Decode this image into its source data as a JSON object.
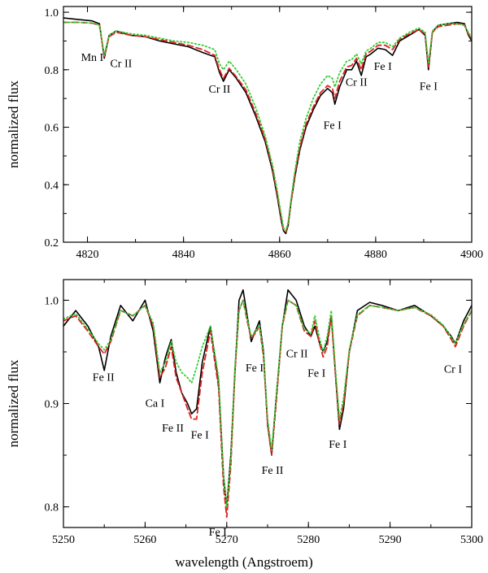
{
  "figure": {
    "xlabel": "wavelength (Angstroem)"
  },
  "chart_data": [
    {
      "type": "line",
      "ylabel": "normalized flux",
      "xlim": [
        4815,
        4900
      ],
      "ylim": [
        0.2,
        1.02
      ],
      "xticks": [
        4820,
        4840,
        4860,
        4880,
        4900
      ],
      "yticks": [
        0.2,
        0.4,
        0.6,
        0.8,
        1.0
      ],
      "xtick_labels": [
        "4820",
        "4840",
        "4860",
        "4880",
        "4900"
      ],
      "ytick_labels": [
        "0.2",
        "0.4",
        "0.6",
        "0.8",
        "1.0"
      ],
      "series": [
        {
          "color": "#000000",
          "style": "solid",
          "x": [
            4815,
            4818,
            4821,
            4822.5,
            4823.5,
            4824.5,
            4826,
            4829,
            4832,
            4835,
            4838,
            4841,
            4844,
            4846.5,
            4847.5,
            4848.3,
            4849.5,
            4851,
            4853,
            4855,
            4857,
            4858.5,
            4859.5,
            4860.3,
            4860.8,
            4861.3,
            4861.8,
            4862.4,
            4863.2,
            4864.2,
            4865.5,
            4867,
            4868.5,
            4870,
            4871,
            4871.5,
            4872.5,
            4874,
            4875,
            4876,
            4877,
            4878,
            4879,
            4880.5,
            4882,
            4883.5,
            4885,
            4887,
            4889,
            4890.3,
            4891,
            4891.8,
            4893,
            4895,
            4897,
            4898.5,
            4899.3,
            4900
          ],
          "y": [
            0.98,
            0.975,
            0.97,
            0.96,
            0.84,
            0.92,
            0.935,
            0.92,
            0.915,
            0.9,
            0.89,
            0.88,
            0.86,
            0.845,
            0.79,
            0.76,
            0.8,
            0.77,
            0.72,
            0.64,
            0.55,
            0.45,
            0.36,
            0.28,
            0.24,
            0.23,
            0.26,
            0.34,
            0.43,
            0.52,
            0.6,
            0.66,
            0.71,
            0.735,
            0.72,
            0.68,
            0.74,
            0.8,
            0.8,
            0.83,
            0.78,
            0.845,
            0.855,
            0.875,
            0.87,
            0.85,
            0.9,
            0.92,
            0.94,
            0.92,
            0.8,
            0.93,
            0.955,
            0.96,
            0.965,
            0.96,
            0.92,
            0.9
          ]
        },
        {
          "color": "#dd2222",
          "style": "dashed",
          "x": [
            4815,
            4818,
            4821,
            4822.5,
            4823.5,
            4824.5,
            4826,
            4829,
            4832,
            4835,
            4838,
            4841,
            4844,
            4846.5,
            4847.5,
            4848.3,
            4849.5,
            4851,
            4853,
            4855,
            4857,
            4858.5,
            4859.5,
            4860.3,
            4860.8,
            4861.3,
            4861.8,
            4862.4,
            4863.2,
            4864.2,
            4865.5,
            4867,
            4868.5,
            4870,
            4871,
            4871.5,
            4872.5,
            4874,
            4875,
            4876,
            4877,
            4878,
            4879,
            4880.5,
            4882,
            4883.5,
            4885,
            4887,
            4889,
            4890.3,
            4891,
            4891.8,
            4893,
            4895,
            4897,
            4898.5,
            4899.3,
            4900
          ],
          "y": [
            0.965,
            0.965,
            0.962,
            0.955,
            0.845,
            0.915,
            0.93,
            0.92,
            0.915,
            0.905,
            0.895,
            0.885,
            0.87,
            0.85,
            0.8,
            0.77,
            0.805,
            0.775,
            0.73,
            0.65,
            0.56,
            0.46,
            0.37,
            0.29,
            0.245,
            0.235,
            0.265,
            0.345,
            0.44,
            0.53,
            0.61,
            0.67,
            0.72,
            0.745,
            0.735,
            0.7,
            0.76,
            0.81,
            0.815,
            0.84,
            0.8,
            0.855,
            0.865,
            0.885,
            0.885,
            0.87,
            0.905,
            0.925,
            0.94,
            0.925,
            0.81,
            0.93,
            0.95,
            0.955,
            0.96,
            0.955,
            0.925,
            0.905
          ]
        },
        {
          "color": "#33cc33",
          "style": "dotted",
          "x": [
            4815,
            4818,
            4821,
            4822.5,
            4823.5,
            4824.5,
            4826,
            4829,
            4832,
            4835,
            4838,
            4841,
            4844,
            4846.5,
            4847.5,
            4848.3,
            4849.5,
            4851,
            4853,
            4855,
            4857,
            4858.5,
            4859.5,
            4860.3,
            4860.8,
            4861.3,
            4861.8,
            4862.4,
            4863.2,
            4864.2,
            4865.5,
            4867,
            4868.5,
            4870,
            4871,
            4871.5,
            4872.5,
            4874,
            4875,
            4876,
            4877,
            4878,
            4879,
            4880.5,
            4882,
            4883.5,
            4885,
            4887,
            4889,
            4890.3,
            4891,
            4891.8,
            4893,
            4895,
            4897,
            4898.5,
            4899.3,
            4900
          ],
          "y": [
            0.965,
            0.965,
            0.962,
            0.955,
            0.85,
            0.92,
            0.935,
            0.925,
            0.92,
            0.91,
            0.9,
            0.895,
            0.885,
            0.87,
            0.82,
            0.8,
            0.83,
            0.8,
            0.75,
            0.67,
            0.57,
            0.47,
            0.38,
            0.3,
            0.25,
            0.24,
            0.27,
            0.35,
            0.45,
            0.55,
            0.63,
            0.7,
            0.75,
            0.78,
            0.77,
            0.74,
            0.79,
            0.83,
            0.835,
            0.855,
            0.82,
            0.865,
            0.875,
            0.895,
            0.895,
            0.88,
            0.91,
            0.93,
            0.945,
            0.93,
            0.82,
            0.935,
            0.955,
            0.96,
            0.96,
            0.955,
            0.93,
            0.91
          ]
        }
      ],
      "annotations": [
        {
          "text": "Mn I",
          "x": 4821.0,
          "y": 0.83
        },
        {
          "text": "Cr II",
          "x": 4827.0,
          "y": 0.81
        },
        {
          "text": "Cr II",
          "x": 4847.5,
          "y": 0.72
        },
        {
          "text": "Fe I",
          "x": 4871.0,
          "y": 0.595
        },
        {
          "text": "Cr II",
          "x": 4876.0,
          "y": 0.745
        },
        {
          "text": "Fe I",
          "x": 4881.5,
          "y": 0.8
        },
        {
          "text": "Fe I",
          "x": 4891.0,
          "y": 0.73
        }
      ]
    },
    {
      "type": "line",
      "ylabel": "normalized flux",
      "xlim": [
        5250,
        5300
      ],
      "ylim": [
        0.78,
        1.02
      ],
      "xticks": [
        5250,
        5260,
        5270,
        5280,
        5290,
        5300
      ],
      "yticks": [
        0.8,
        0.9,
        1.0
      ],
      "xtick_labels": [
        "5250",
        "5260",
        "5270",
        "5280",
        "5290",
        "5300"
      ],
      "ytick_labels": [
        "0.8",
        "0.9",
        "1.0"
      ],
      "series": [
        {
          "color": "#000000",
          "style": "solid",
          "x": [
            5250,
            5251.5,
            5253,
            5254.3,
            5255,
            5255.8,
            5257,
            5258.5,
            5260,
            5261,
            5261.8,
            5262.5,
            5263.2,
            5263.8,
            5264.5,
            5265.2,
            5265.7,
            5266.3,
            5267,
            5268,
            5269,
            5269.6,
            5270,
            5270.5,
            5271,
            5271.5,
            5272,
            5272.5,
            5273,
            5273.5,
            5274,
            5274.5,
            5275,
            5275.5,
            5276,
            5276.8,
            5277.5,
            5278.5,
            5279.5,
            5280.3,
            5280.8,
            5281.3,
            5281.8,
            5282.3,
            5282.8,
            5283.3,
            5283.8,
            5284.3,
            5285,
            5286,
            5287.5,
            5289,
            5291,
            5293,
            5295,
            5296.5,
            5297.5,
            5298,
            5299,
            5300
          ],
          "y": [
            0.975,
            0.99,
            0.975,
            0.955,
            0.932,
            0.965,
            0.995,
            0.98,
            1.0,
            0.97,
            0.92,
            0.945,
            0.962,
            0.93,
            0.91,
            0.9,
            0.89,
            0.895,
            0.94,
            0.975,
            0.92,
            0.83,
            0.8,
            0.85,
            0.93,
            1.0,
            1.01,
            0.985,
            0.96,
            0.97,
            0.98,
            0.95,
            0.88,
            0.85,
            0.9,
            0.975,
            1.01,
            1.0,
            0.975,
            0.965,
            0.975,
            0.96,
            0.95,
            0.96,
            0.985,
            0.93,
            0.875,
            0.895,
            0.95,
            0.99,
            0.998,
            0.995,
            0.99,
            0.995,
            0.985,
            0.975,
            0.965,
            0.958,
            0.98,
            0.995
          ]
        },
        {
          "color": "#dd2222",
          "style": "dashed",
          "x": [
            5250,
            5251.5,
            5253,
            5254.3,
            5255,
            5255.8,
            5257,
            5258.5,
            5260,
            5261,
            5261.8,
            5262.5,
            5263.2,
            5263.8,
            5264.5,
            5265.2,
            5265.7,
            5266.3,
            5267,
            5268,
            5269,
            5269.6,
            5270,
            5270.5,
            5271,
            5271.5,
            5272,
            5272.5,
            5273,
            5273.5,
            5274,
            5274.5,
            5275,
            5275.5,
            5276,
            5276.8,
            5277.5,
            5278.5,
            5279.5,
            5280.3,
            5280.8,
            5281.3,
            5281.8,
            5282.3,
            5282.8,
            5283.3,
            5283.8,
            5284.3,
            5285,
            5286,
            5287.5,
            5289,
            5291,
            5293,
            5295,
            5296.5,
            5297.5,
            5298,
            5299,
            5300
          ],
          "y": [
            0.98,
            0.985,
            0.97,
            0.955,
            0.948,
            0.96,
            0.99,
            0.985,
            0.995,
            0.975,
            0.925,
            0.935,
            0.955,
            0.925,
            0.91,
            0.895,
            0.885,
            0.885,
            0.93,
            0.97,
            0.915,
            0.82,
            0.79,
            0.84,
            0.93,
            0.99,
            1.0,
            0.98,
            0.963,
            0.968,
            0.975,
            0.945,
            0.88,
            0.85,
            0.895,
            0.975,
            1.0,
            0.995,
            0.97,
            0.965,
            0.98,
            0.96,
            0.945,
            0.955,
            0.985,
            0.93,
            0.88,
            0.9,
            0.95,
            0.985,
            0.995,
            0.993,
            0.99,
            0.993,
            0.985,
            0.975,
            0.962,
            0.955,
            0.975,
            0.99
          ]
        },
        {
          "color": "#33cc33",
          "style": "dotted",
          "x": [
            5250,
            5251.5,
            5253,
            5254.3,
            5255,
            5255.8,
            5257,
            5258.5,
            5260,
            5261,
            5261.8,
            5262.5,
            5263.2,
            5263.8,
            5264.5,
            5265.2,
            5265.7,
            5266.3,
            5267,
            5268,
            5269,
            5269.6,
            5270,
            5270.5,
            5271,
            5271.5,
            5272,
            5272.5,
            5273,
            5273.5,
            5274,
            5274.5,
            5275,
            5275.5,
            5276,
            5276.8,
            5277.5,
            5278.5,
            5279.5,
            5280.3,
            5280.8,
            5281.3,
            5281.8,
            5282.3,
            5282.8,
            5283.3,
            5283.8,
            5284.3,
            5285,
            5286,
            5287.5,
            5289,
            5291,
            5293,
            5295,
            5296.5,
            5297.5,
            5298,
            5299,
            5300
          ],
          "y": [
            0.982,
            0.987,
            0.972,
            0.958,
            0.952,
            0.962,
            0.99,
            0.985,
            0.995,
            0.978,
            0.93,
            0.94,
            0.96,
            0.94,
            0.93,
            0.925,
            0.92,
            0.935,
            0.955,
            0.975,
            0.925,
            0.83,
            0.8,
            0.845,
            0.935,
            0.99,
            1.0,
            0.982,
            0.965,
            0.97,
            0.976,
            0.948,
            0.885,
            0.855,
            0.9,
            0.977,
            1.0,
            0.995,
            0.972,
            0.968,
            0.985,
            0.965,
            0.95,
            0.965,
            0.99,
            0.935,
            0.885,
            0.905,
            0.952,
            0.986,
            0.995,
            0.993,
            0.99,
            0.993,
            0.986,
            0.976,
            0.964,
            0.958,
            0.977,
            0.99
          ]
        }
      ],
      "annotations": [
        {
          "text": "Fe II",
          "x": 5254.9,
          "y": 0.922
        },
        {
          "text": "Ca I",
          "x": 5261.2,
          "y": 0.897
        },
        {
          "text": "Fe II",
          "x": 5263.4,
          "y": 0.873
        },
        {
          "text": "Fe I",
          "x": 5266.7,
          "y": 0.866
        },
        {
          "text": "Fe I",
          "x": 5268.9,
          "y": 0.772
        },
        {
          "text": "Fe I",
          "x": 5273.4,
          "y": 0.931
        },
        {
          "text": "Fe II",
          "x": 5275.6,
          "y": 0.832
        },
        {
          "text": "Cr II",
          "x": 5278.6,
          "y": 0.945
        },
        {
          "text": "Fe I",
          "x": 5281.0,
          "y": 0.926
        },
        {
          "text": "Fe I",
          "x": 5283.6,
          "y": 0.857
        },
        {
          "text": "Cr I",
          "x": 5297.7,
          "y": 0.93
        }
      ]
    }
  ]
}
